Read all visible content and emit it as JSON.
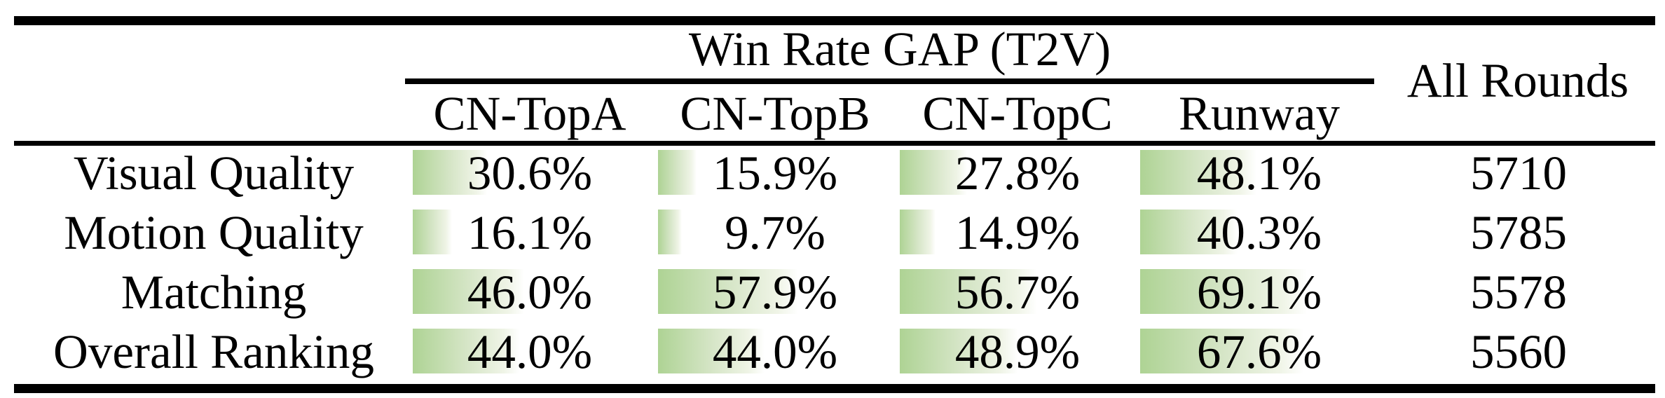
{
  "table": {
    "span_header": "Win Rate GAP (T2V)",
    "all_rounds_header": "All Rounds",
    "columns": [
      "CN-TopA",
      "CN-TopB",
      "CN-TopC",
      "Runway"
    ],
    "rows": [
      {
        "label": "Visual Quality",
        "values": [
          "30.6%",
          "15.9%",
          "27.8%",
          "48.1%"
        ],
        "all_rounds": "5710"
      },
      {
        "label": "Motion Quality",
        "values": [
          "16.1%",
          "9.7%",
          "14.9%",
          "40.3%"
        ],
        "all_rounds": "5785"
      },
      {
        "label": "Matching",
        "values": [
          "46.0%",
          "57.9%",
          "56.7%",
          "69.1%"
        ],
        "all_rounds": "5578"
      },
      {
        "label": "Overall Ranking",
        "values": [
          "44.0%",
          "44.0%",
          "48.9%",
          "67.6%"
        ],
        "all_rounds": "5560"
      }
    ]
  },
  "chart_data": {
    "type": "table",
    "title": "Win Rate GAP (T2V)",
    "categories": [
      "Visual Quality",
      "Motion Quality",
      "Matching",
      "Overall Ranking"
    ],
    "series": [
      {
        "name": "CN-TopA",
        "values": [
          30.6,
          16.1,
          46.0,
          44.0
        ]
      },
      {
        "name": "CN-TopB",
        "values": [
          15.9,
          9.7,
          57.9,
          44.0
        ]
      },
      {
        "name": "CN-TopC",
        "values": [
          27.8,
          14.9,
          56.7,
          48.9
        ]
      },
      {
        "name": "Runway",
        "values": [
          48.1,
          40.3,
          69.1,
          67.6
        ]
      }
    ],
    "all_rounds": [
      5710,
      5785,
      5578,
      5560
    ],
    "bar_unit": "percent",
    "bar_color": "#aed394",
    "bar_fade_to": "#ffffff"
  }
}
